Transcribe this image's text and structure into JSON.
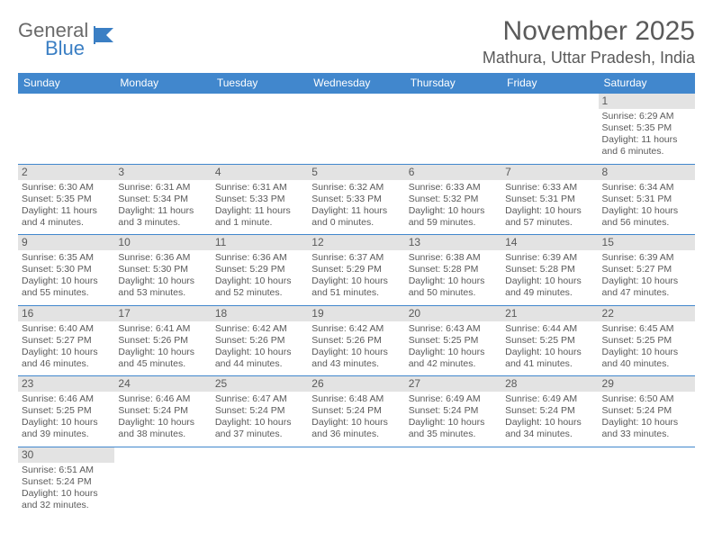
{
  "logo": {
    "line1": "General",
    "line2": "Blue"
  },
  "title": "November 2025",
  "location": "Mathura, Uttar Pradesh, India",
  "colors": {
    "header_bg": "#4187cd",
    "header_fg": "#ffffff",
    "border": "#4187cd",
    "daynum_bg": "#e3e3e3",
    "text": "#5a5a5a",
    "logo_blue": "#3b7fc4"
  },
  "weekdays": [
    "Sunday",
    "Monday",
    "Tuesday",
    "Wednesday",
    "Thursday",
    "Friday",
    "Saturday"
  ],
  "weeks": [
    [
      null,
      null,
      null,
      null,
      null,
      null,
      {
        "n": "1",
        "sr": "Sunrise: 6:29 AM",
        "ss": "Sunset: 5:35 PM",
        "dl": "Daylight: 11 hours and 6 minutes."
      }
    ],
    [
      {
        "n": "2",
        "sr": "Sunrise: 6:30 AM",
        "ss": "Sunset: 5:35 PM",
        "dl": "Daylight: 11 hours and 4 minutes."
      },
      {
        "n": "3",
        "sr": "Sunrise: 6:31 AM",
        "ss": "Sunset: 5:34 PM",
        "dl": "Daylight: 11 hours and 3 minutes."
      },
      {
        "n": "4",
        "sr": "Sunrise: 6:31 AM",
        "ss": "Sunset: 5:33 PM",
        "dl": "Daylight: 11 hours and 1 minute."
      },
      {
        "n": "5",
        "sr": "Sunrise: 6:32 AM",
        "ss": "Sunset: 5:33 PM",
        "dl": "Daylight: 11 hours and 0 minutes."
      },
      {
        "n": "6",
        "sr": "Sunrise: 6:33 AM",
        "ss": "Sunset: 5:32 PM",
        "dl": "Daylight: 10 hours and 59 minutes."
      },
      {
        "n": "7",
        "sr": "Sunrise: 6:33 AM",
        "ss": "Sunset: 5:31 PM",
        "dl": "Daylight: 10 hours and 57 minutes."
      },
      {
        "n": "8",
        "sr": "Sunrise: 6:34 AM",
        "ss": "Sunset: 5:31 PM",
        "dl": "Daylight: 10 hours and 56 minutes."
      }
    ],
    [
      {
        "n": "9",
        "sr": "Sunrise: 6:35 AM",
        "ss": "Sunset: 5:30 PM",
        "dl": "Daylight: 10 hours and 55 minutes."
      },
      {
        "n": "10",
        "sr": "Sunrise: 6:36 AM",
        "ss": "Sunset: 5:30 PM",
        "dl": "Daylight: 10 hours and 53 minutes."
      },
      {
        "n": "11",
        "sr": "Sunrise: 6:36 AM",
        "ss": "Sunset: 5:29 PM",
        "dl": "Daylight: 10 hours and 52 minutes."
      },
      {
        "n": "12",
        "sr": "Sunrise: 6:37 AM",
        "ss": "Sunset: 5:29 PM",
        "dl": "Daylight: 10 hours and 51 minutes."
      },
      {
        "n": "13",
        "sr": "Sunrise: 6:38 AM",
        "ss": "Sunset: 5:28 PM",
        "dl": "Daylight: 10 hours and 50 minutes."
      },
      {
        "n": "14",
        "sr": "Sunrise: 6:39 AM",
        "ss": "Sunset: 5:28 PM",
        "dl": "Daylight: 10 hours and 49 minutes."
      },
      {
        "n": "15",
        "sr": "Sunrise: 6:39 AM",
        "ss": "Sunset: 5:27 PM",
        "dl": "Daylight: 10 hours and 47 minutes."
      }
    ],
    [
      {
        "n": "16",
        "sr": "Sunrise: 6:40 AM",
        "ss": "Sunset: 5:27 PM",
        "dl": "Daylight: 10 hours and 46 minutes."
      },
      {
        "n": "17",
        "sr": "Sunrise: 6:41 AM",
        "ss": "Sunset: 5:26 PM",
        "dl": "Daylight: 10 hours and 45 minutes."
      },
      {
        "n": "18",
        "sr": "Sunrise: 6:42 AM",
        "ss": "Sunset: 5:26 PM",
        "dl": "Daylight: 10 hours and 44 minutes."
      },
      {
        "n": "19",
        "sr": "Sunrise: 6:42 AM",
        "ss": "Sunset: 5:26 PM",
        "dl": "Daylight: 10 hours and 43 minutes."
      },
      {
        "n": "20",
        "sr": "Sunrise: 6:43 AM",
        "ss": "Sunset: 5:25 PM",
        "dl": "Daylight: 10 hours and 42 minutes."
      },
      {
        "n": "21",
        "sr": "Sunrise: 6:44 AM",
        "ss": "Sunset: 5:25 PM",
        "dl": "Daylight: 10 hours and 41 minutes."
      },
      {
        "n": "22",
        "sr": "Sunrise: 6:45 AM",
        "ss": "Sunset: 5:25 PM",
        "dl": "Daylight: 10 hours and 40 minutes."
      }
    ],
    [
      {
        "n": "23",
        "sr": "Sunrise: 6:46 AM",
        "ss": "Sunset: 5:25 PM",
        "dl": "Daylight: 10 hours and 39 minutes."
      },
      {
        "n": "24",
        "sr": "Sunrise: 6:46 AM",
        "ss": "Sunset: 5:24 PM",
        "dl": "Daylight: 10 hours and 38 minutes."
      },
      {
        "n": "25",
        "sr": "Sunrise: 6:47 AM",
        "ss": "Sunset: 5:24 PM",
        "dl": "Daylight: 10 hours and 37 minutes."
      },
      {
        "n": "26",
        "sr": "Sunrise: 6:48 AM",
        "ss": "Sunset: 5:24 PM",
        "dl": "Daylight: 10 hours and 36 minutes."
      },
      {
        "n": "27",
        "sr": "Sunrise: 6:49 AM",
        "ss": "Sunset: 5:24 PM",
        "dl": "Daylight: 10 hours and 35 minutes."
      },
      {
        "n": "28",
        "sr": "Sunrise: 6:49 AM",
        "ss": "Sunset: 5:24 PM",
        "dl": "Daylight: 10 hours and 34 minutes."
      },
      {
        "n": "29",
        "sr": "Sunrise: 6:50 AM",
        "ss": "Sunset: 5:24 PM",
        "dl": "Daylight: 10 hours and 33 minutes."
      }
    ],
    [
      {
        "n": "30",
        "sr": "Sunrise: 6:51 AM",
        "ss": "Sunset: 5:24 PM",
        "dl": "Daylight: 10 hours and 32 minutes."
      },
      null,
      null,
      null,
      null,
      null,
      null
    ]
  ]
}
